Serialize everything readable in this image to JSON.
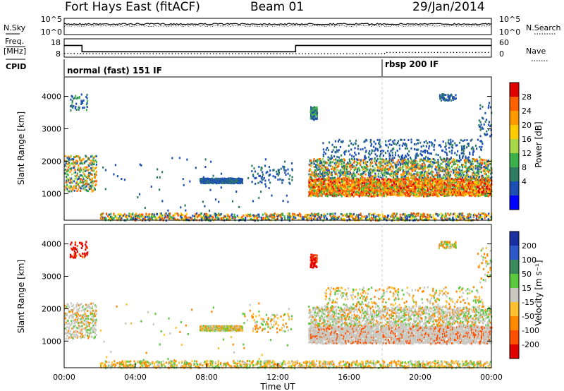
{
  "header": {
    "station": "Fort Hays East (fitACF)",
    "beam": "Beam 01",
    "date": "29/Jan/2014"
  },
  "top_panels": {
    "nsky_label": "N.Sky",
    "nsearch_label": "N.Search",
    "nave_label": "Nave",
    "freq_label": "Freq.",
    "freq_unit": "[MHz]",
    "cpid_label": "CPID",
    "noise_ticks_left": [
      "10^5",
      "10^0"
    ],
    "noise_ticks_right": [
      "10^5",
      "10^0"
    ],
    "freq_ticks": [
      "18",
      "8"
    ],
    "nave_ticks": [
      "60",
      "0"
    ]
  },
  "cpid": {
    "segments": [
      {
        "start_hour": 0,
        "label": "normal (fast) 151 IF"
      },
      {
        "start_hour": 18,
        "label": "rbsp 200 IF"
      }
    ]
  },
  "chart_data": [
    {
      "type": "line",
      "panel": "frequency",
      "ylabel": "Freq. [MHz]",
      "ylim": [
        8,
        18
      ],
      "x": [
        0,
        1,
        1,
        13,
        13,
        24
      ],
      "values": [
        14.5,
        14.5,
        10.8,
        10.8,
        14.5,
        14.5
      ]
    },
    {
      "type": "line",
      "panel": "nave",
      "ylim": [
        0,
        60
      ],
      "x": [
        0,
        1,
        1,
        18,
        18,
        24
      ],
      "values": [
        11,
        11,
        10,
        10,
        14,
        14
      ]
    },
    {
      "type": "heatmap",
      "panel": "power",
      "ylabel": "Slant Range [km]",
      "colorbar_label": "Power [dB]",
      "colorbar_ticks": [
        "28",
        "24",
        "20",
        "16",
        "12",
        "8",
        "4"
      ],
      "colorbar_colors": [
        "#e00000",
        "#ff6000",
        "#ff9a00",
        "#ffcc00",
        "#a8d84a",
        "#3cb04a",
        "#2e7d63",
        "#1e50b4",
        "#0000ff"
      ],
      "ylim": [
        180,
        4600
      ],
      "yticks": [
        "1000",
        "2000",
        "3000",
        "4000"
      ],
      "xlim": [
        0,
        24
      ],
      "xticks": [
        "00:00",
        "04:00",
        "08:00",
        "12:00",
        "16:00",
        "20:00",
        "00:00"
      ],
      "xlabel": "Time UT"
    },
    {
      "type": "heatmap",
      "panel": "velocity",
      "ylabel": "Slant Range [km]",
      "colorbar_label": "Velocity [m s⁻¹]",
      "colorbar_ticks": [
        "200",
        "100",
        "50",
        "15",
        "-15",
        "-50",
        "-100",
        "-200"
      ],
      "colorbar_colors": [
        "#1a30a0",
        "#2c58c8",
        "#3c8a5c",
        "#5cc840",
        "#c8c8c0",
        "#ffc030",
        "#ff8a00",
        "#ff5000",
        "#e00000"
      ],
      "ylim": [
        180,
        4600
      ],
      "yticks": [
        "1000",
        "2000",
        "3000",
        "4000"
      ],
      "xlim": [
        0,
        24
      ],
      "xticks": [
        "00:00",
        "04:00",
        "08:00",
        "12:00",
        "16:00",
        "20:00",
        "00:00"
      ],
      "xlabel": "Time UT"
    }
  ]
}
